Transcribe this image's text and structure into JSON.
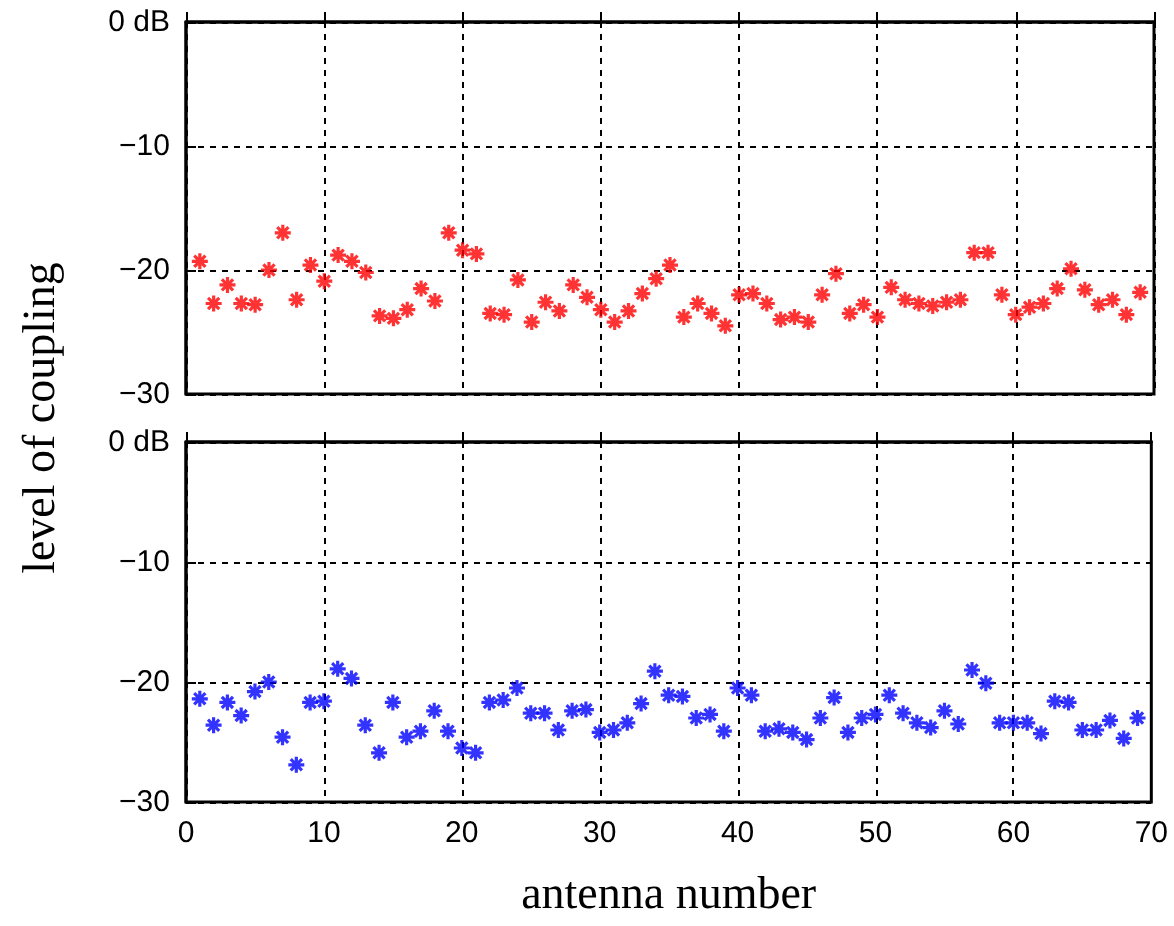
{
  "chart_data": [
    {
      "type": "scatter",
      "ylabel": "level of coupling",
      "x": [
        1,
        2,
        3,
        4,
        5,
        6,
        7,
        8,
        9,
        10,
        11,
        12,
        13,
        14,
        15,
        16,
        17,
        18,
        19,
        20,
        21,
        22,
        23,
        24,
        25,
        26,
        27,
        28,
        29,
        30,
        31,
        32,
        33,
        34,
        35,
        36,
        37,
        38,
        39,
        40,
        41,
        42,
        43,
        44,
        45,
        46,
        47,
        48,
        49,
        50,
        51,
        52,
        53,
        54,
        55,
        56,
        57,
        58,
        59,
        60,
        61,
        62,
        63,
        64,
        65,
        66,
        67,
        68,
        69
      ],
      "series": [
        {
          "color": "#ff0000",
          "values": [
            -19.3,
            -22.7,
            -21.2,
            -22.7,
            -22.8,
            -20,
            -17,
            -22.4,
            -19.6,
            -20.9,
            -18.8,
            -19.3,
            -20.2,
            -23.7,
            -23.9,
            -23.2,
            -21.5,
            -22.5,
            -17,
            -18.4,
            -18.7,
            -23.5,
            -23.6,
            -20.8,
            -24.2,
            -22.6,
            -23.3,
            -21.2,
            -22.2,
            -23.2,
            -24.2,
            -23.3,
            -21.9,
            -20.7,
            -19.6,
            -23.8,
            -22.7,
            -23.5,
            -24.5,
            -22,
            -21.9,
            -22.7,
            -24,
            -23.8,
            -24.2,
            -22,
            -20.3,
            -23.5,
            -22.8,
            -23.8,
            -21.4,
            -22.4,
            -22.7,
            -22.9,
            -22.6,
            -22.4,
            -18.6,
            -18.6,
            -22,
            -23.6,
            -23,
            -22.7,
            -21.5,
            -19.9,
            -21.6,
            -22.8,
            -22.4,
            -23.6,
            -21.8
          ]
        }
      ],
      "xlim": [
        0,
        70
      ],
      "xticks": [
        0,
        10,
        20,
        30,
        40,
        50,
        60,
        70
      ],
      "ylim": [
        -30,
        0
      ],
      "yticks": [
        {
          "value": -30,
          "label": "−30"
        },
        {
          "value": -20,
          "label": "−20"
        },
        {
          "value": -10,
          "label": "−10"
        },
        {
          "value": 0,
          "label": "0 dB"
        }
      ],
      "grid": true,
      "marker": "cross",
      "tick_labels": "y"
    },
    {
      "type": "scatter",
      "xlabel": "antenna number",
      "x": [
        1,
        2,
        3,
        4,
        5,
        6,
        7,
        8,
        9,
        10,
        11,
        12,
        13,
        14,
        15,
        16,
        17,
        18,
        19,
        20,
        21,
        22,
        23,
        24,
        25,
        26,
        27,
        28,
        29,
        30,
        31,
        32,
        33,
        34,
        35,
        36,
        37,
        38,
        39,
        40,
        41,
        42,
        43,
        44,
        45,
        46,
        47,
        48,
        49,
        50,
        51,
        52,
        53,
        54,
        55,
        56,
        57,
        58,
        59,
        60,
        61,
        62,
        63,
        64,
        65,
        66,
        67,
        68,
        69
      ],
      "series": [
        {
          "color": "#0000ff",
          "values": [
            -21.4,
            -23.6,
            -21.7,
            -22.8,
            -20.8,
            -20,
            -24.6,
            -26.9,
            -21.7,
            -21.6,
            -18.9,
            -19.7,
            -23.6,
            -25.9,
            -21.7,
            -24.6,
            -24.1,
            -22.4,
            -24.1,
            -25.5,
            -25.9,
            -21.7,
            -21.5,
            -20.5,
            -22.6,
            -22.6,
            -24,
            -22.4,
            -22.3,
            -24.2,
            -24,
            -23.4,
            -21.8,
            -19.1,
            -21.1,
            -21.2,
            -23,
            -22.7,
            -24.1,
            -20.5,
            -21.1,
            -24.1,
            -23.9,
            -24.2,
            -24.8,
            -23,
            -21.3,
            -24.2,
            -23,
            -22.7,
            -21.1,
            -22.6,
            -23.4,
            -23.8,
            -22.4,
            -23.5,
            -19,
            -20.1,
            -23.4,
            -23.4,
            -23.4,
            -24.3,
            -21.6,
            -21.7,
            -24,
            -24,
            -23.2,
            -24.7,
            -23
          ]
        }
      ],
      "xlim": [
        0,
        70
      ],
      "xticks": [
        0,
        10,
        20,
        30,
        40,
        50,
        60,
        70
      ],
      "ylim": [
        -30,
        0
      ],
      "yticks": [
        {
          "value": -30,
          "label": "−30"
        },
        {
          "value": -20,
          "label": "−20"
        },
        {
          "value": -10,
          "label": "−10"
        },
        {
          "value": 0,
          "label": "0 dB"
        }
      ],
      "grid": true,
      "marker": "cross"
    }
  ]
}
